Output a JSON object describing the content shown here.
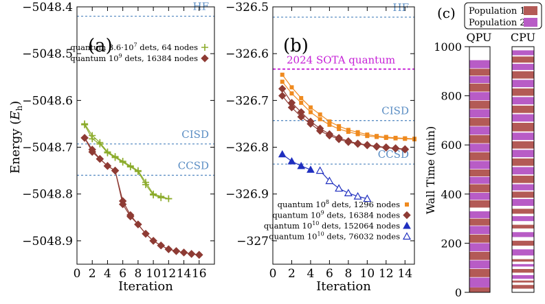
{
  "chart_data": [
    {
      "id": "a",
      "type": "line",
      "panel_label": "(a)",
      "xlabel": "Iteration",
      "ylabel": "Energy (E_h)",
      "ylabel_main": "Energy (",
      "ylabel_sym": "E",
      "ylabel_sub": "h",
      "ylabel_close": ")",
      "xlim": [
        0,
        18
      ],
      "ylim": [
        -5048.95,
        -5048.4
      ],
      "xticks": [
        0,
        2,
        4,
        6,
        8,
        10,
        12,
        14,
        16
      ],
      "yticks": [
        -5048.4,
        -5048.5,
        -5048.6,
        -5048.7,
        -5048.8,
        -5048.9
      ],
      "ytick_labels": [
        "−5048.4",
        "−5048.5",
        "−5048.6",
        "−5048.7",
        "−5048.8",
        "−5048.9"
      ],
      "hlines": [
        {
          "label": "HF",
          "y": -5048.42,
          "color": "#5b8ec4"
        },
        {
          "label": "CISD",
          "y": -5048.693,
          "color": "#5b8ec4"
        },
        {
          "label": "CCSD",
          "y": -5048.76,
          "color": "#5b8ec4"
        }
      ],
      "legend_position": "top-right",
      "series": [
        {
          "name": "quantum 3.6·10^7 dets, 64 nodes",
          "legend_pre": "quantum 3.6·10",
          "legend_sup": "7",
          "legend_post": " dets, 64 nodes",
          "color": "#8bab2a",
          "marker": "plus",
          "runs": [
            {
              "x": [
                1,
                2,
                3,
                4,
                5,
                6,
                7,
                8,
                9,
                10,
                11,
                12
              ],
              "y": [
                -5048.65,
                -5048.675,
                -5048.69,
                -5048.71,
                -5048.72,
                -5048.73,
                -5048.74,
                -5048.75,
                -5048.775,
                -5048.8,
                -5048.805,
                -5048.81
              ]
            },
            {
              "x": [
                1,
                2,
                3,
                4,
                5,
                6,
                7,
                8,
                9,
                10,
                11,
                12
              ],
              "y": [
                -5048.652,
                -5048.682,
                -5048.693,
                -5048.712,
                -5048.722,
                -5048.732,
                -5048.742,
                -5048.752,
                -5048.78,
                -5048.802,
                -5048.808,
                -5048.81
              ]
            }
          ]
        },
        {
          "name": "quantum 10^9 dets, 16384 nodes",
          "legend_pre": "quantum 10",
          "legend_sup": "9",
          "legend_post": " dets, 16384 nodes",
          "color": "#8e3b34",
          "marker": "diamond",
          "runs": [
            {
              "x": [
                1,
                2,
                3,
                4,
                5,
                6,
                7,
                8,
                9,
                10,
                11,
                12,
                13,
                14,
                15,
                16
              ],
              "y": [
                -5048.68,
                -5048.705,
                -5048.725,
                -5048.74,
                -5048.75,
                -5048.815,
                -5048.845,
                -5048.865,
                -5048.885,
                -5048.9,
                -5048.91,
                -5048.918,
                -5048.922,
                -5048.925,
                -5048.928,
                -5048.93
              ]
            },
            {
              "x": [
                1,
                2,
                3,
                4,
                5,
                6,
                7,
                8,
                9,
                10,
                11,
                12,
                13,
                14,
                15,
                16
              ],
              "y": [
                -5048.68,
                -5048.71,
                -5048.725,
                -5048.74,
                -5048.75,
                -5048.822,
                -5048.848,
                -5048.865,
                -5048.885,
                -5048.9,
                -5048.91,
                -5048.918,
                -5048.922,
                -5048.925,
                -5048.928,
                -5048.93
              ]
            }
          ]
        }
      ]
    },
    {
      "id": "b",
      "type": "line",
      "panel_label": "(b)",
      "xlabel": "Iteration",
      "xlim": [
        0,
        15
      ],
      "ylim": [
        -327.05,
        -326.5
      ],
      "xticks": [
        0,
        2,
        4,
        6,
        8,
        10,
        12,
        14
      ],
      "yticks": [
        -326.5,
        -326.6,
        -326.7,
        -326.8,
        -326.9,
        -327
      ],
      "ytick_labels": [
        "−326.5",
        "−326.6",
        "−326.7",
        "−326.8",
        "−326.9",
        "−327"
      ],
      "hlines": [
        {
          "label": "HF",
          "y": -326.522,
          "color": "#5b8ec4"
        },
        {
          "label": "2024 SOTA quantum",
          "y": -326.633,
          "color": "#c51fd6"
        },
        {
          "label": "CISD",
          "y": -326.743,
          "color": "#5b8ec4"
        },
        {
          "label": "CCSD",
          "y": -326.836,
          "color": "#5b8ec4"
        }
      ],
      "legend_position": "bottom-right",
      "series": [
        {
          "name": "quantum 10^8 dets, 1296 nodes",
          "legend_pre": "quantum 10",
          "legend_sup": "8",
          "legend_post": " dets, 1296 nodes",
          "color": "#ef8a1f",
          "marker": "square",
          "runs": [
            {
              "x": [
                1,
                2,
                3,
                4,
                5,
                6,
                7,
                8,
                9,
                10,
                11,
                12,
                13,
                14,
                15
              ],
              "y": [
                -326.645,
                -326.672,
                -326.695,
                -326.715,
                -326.73,
                -326.745,
                -326.755,
                -326.763,
                -326.768,
                -326.773,
                -326.776,
                -326.778,
                -326.78,
                -326.781,
                -326.782
              ]
            },
            {
              "x": [
                1,
                2,
                3,
                4,
                5,
                6,
                7,
                8,
                9,
                10,
                11,
                12,
                13,
                14,
                15
              ],
              "y": [
                -326.66,
                -326.685,
                -326.705,
                -326.725,
                -326.74,
                -326.752,
                -326.761,
                -326.767,
                -326.772,
                -326.776,
                -326.778,
                -326.78,
                -326.781,
                -326.782,
                -326.783
              ]
            }
          ]
        },
        {
          "name": "quantum 10^9 dets, 16384 nodes",
          "legend_pre": "quantum 10",
          "legend_sup": "9",
          "legend_post": " dets, 16384 nodes",
          "color": "#8e3b34",
          "marker": "diamond",
          "runs": [
            {
              "x": [
                1,
                2,
                3,
                4,
                5,
                6,
                7,
                8,
                9,
                10,
                11,
                12,
                13,
                14
              ],
              "y": [
                -326.675,
                -326.705,
                -326.725,
                -326.745,
                -326.76,
                -326.772,
                -326.78,
                -326.787,
                -326.792,
                -326.795,
                -326.798,
                -326.8,
                -326.802,
                -326.804
              ]
            },
            {
              "x": [
                1,
                2,
                3,
                4,
                5,
                6,
                7,
                8,
                9,
                10,
                11,
                12,
                13,
                14
              ],
              "y": [
                -326.69,
                -326.715,
                -326.735,
                -326.75,
                -326.765,
                -326.775,
                -326.783,
                -326.789,
                -326.793,
                -326.796,
                -326.799,
                -326.801,
                -326.803,
                -326.805
              ]
            }
          ]
        },
        {
          "name": "quantum 10^10 dets, 152064 nodes",
          "legend_pre": "quantum 10",
          "legend_sup": "10",
          "legend_post": " dets, 152064 nodes",
          "color": "#1f2fbf",
          "marker": "triangle",
          "runs": [
            {
              "x": [
                1,
                2,
                3,
                4
              ],
              "y": [
                -326.815,
                -326.83,
                -326.84,
                -326.848
              ]
            }
          ]
        },
        {
          "name": "quantum 10^10 dets, 76032 nodes",
          "legend_pre": "quantum 10",
          "legend_sup": "10",
          "legend_post": " dets, 76032 nodes",
          "color": "#1f2fbf",
          "marker": "triangle-open",
          "runs": [
            {
              "x": [
                5,
                6,
                7,
                8,
                9,
                10
              ],
              "y": [
                -326.85,
                -326.872,
                -326.888,
                -326.898,
                -326.905,
                -326.91
              ]
            }
          ]
        }
      ]
    },
    {
      "id": "c",
      "type": "bar",
      "panel_label": "(c)",
      "ylabel": "Wall Time (min)",
      "categories": [
        "QPU",
        "CPU"
      ],
      "ylim": [
        0,
        1000
      ],
      "yticks": [
        0,
        200,
        400,
        600,
        800,
        1000
      ],
      "ytick_labels": [
        "0",
        "200",
        "400",
        "600",
        "800",
        "1000"
      ],
      "legend": [
        {
          "label": "Population 1",
          "color": "#b35a56"
        },
        {
          "label": "Population 2",
          "color": "#b85cc6"
        }
      ],
      "timelines": [
        {
          "name": "QPU",
          "segments": [
            {
              "start": 0,
              "end": 20,
              "pop": 1
            },
            {
              "start": 20,
              "end": 60,
              "pop": 2
            },
            {
              "start": 62,
              "end": 95,
              "pop": 1
            },
            {
              "start": 97,
              "end": 130,
              "pop": 2
            },
            {
              "start": 132,
              "end": 165,
              "pop": 1
            },
            {
              "start": 167,
              "end": 200,
              "pop": 2
            },
            {
              "start": 202,
              "end": 235,
              "pop": 1
            },
            {
              "start": 237,
              "end": 270,
              "pop": 2
            },
            {
              "start": 272,
              "end": 300,
              "pop": 1
            },
            {
              "start": 302,
              "end": 330,
              "pop": 2
            },
            {
              "start": 345,
              "end": 375,
              "pop": 1
            },
            {
              "start": 377,
              "end": 405,
              "pop": 2
            },
            {
              "start": 407,
              "end": 440,
              "pop": 1
            },
            {
              "start": 442,
              "end": 470,
              "pop": 2
            },
            {
              "start": 472,
              "end": 500,
              "pop": 1
            },
            {
              "start": 502,
              "end": 535,
              "pop": 2
            },
            {
              "start": 537,
              "end": 570,
              "pop": 1
            },
            {
              "start": 572,
              "end": 605,
              "pop": 2
            },
            {
              "start": 607,
              "end": 640,
              "pop": 1
            },
            {
              "start": 642,
              "end": 675,
              "pop": 2
            },
            {
              "start": 677,
              "end": 710,
              "pop": 1
            },
            {
              "start": 712,
              "end": 745,
              "pop": 2
            },
            {
              "start": 747,
              "end": 780,
              "pop": 1
            },
            {
              "start": 782,
              "end": 815,
              "pop": 2
            },
            {
              "start": 817,
              "end": 850,
              "pop": 1
            },
            {
              "start": 852,
              "end": 880,
              "pop": 2
            },
            {
              "start": 882,
              "end": 910,
              "pop": 1
            },
            {
              "start": 912,
              "end": 945,
              "pop": 2
            }
          ]
        },
        {
          "name": "CPU",
          "segments": [
            {
              "start": 15,
              "end": 30,
              "pop": 1
            },
            {
              "start": 40,
              "end": 48,
              "pop": 1
            },
            {
              "start": 55,
              "end": 70,
              "pop": 2
            },
            {
              "start": 80,
              "end": 95,
              "pop": 1
            },
            {
              "start": 105,
              "end": 115,
              "pop": 2
            },
            {
              "start": 125,
              "end": 135,
              "pop": 1
            },
            {
              "start": 150,
              "end": 175,
              "pop": 2
            },
            {
              "start": 190,
              "end": 210,
              "pop": 1
            },
            {
              "start": 225,
              "end": 245,
              "pop": 2
            },
            {
              "start": 260,
              "end": 275,
              "pop": 1
            },
            {
              "start": 290,
              "end": 310,
              "pop": 2
            },
            {
              "start": 320,
              "end": 340,
              "pop": 1
            },
            {
              "start": 352,
              "end": 380,
              "pop": 2
            },
            {
              "start": 385,
              "end": 410,
              "pop": 1
            },
            {
              "start": 415,
              "end": 440,
              "pop": 2
            },
            {
              "start": 445,
              "end": 475,
              "pop": 1
            },
            {
              "start": 480,
              "end": 510,
              "pop": 2
            },
            {
              "start": 515,
              "end": 545,
              "pop": 1
            },
            {
              "start": 550,
              "end": 580,
              "pop": 2
            },
            {
              "start": 585,
              "end": 615,
              "pop": 1
            },
            {
              "start": 620,
              "end": 650,
              "pop": 2
            },
            {
              "start": 655,
              "end": 690,
              "pop": 1
            },
            {
              "start": 695,
              "end": 725,
              "pop": 2
            },
            {
              "start": 730,
              "end": 760,
              "pop": 1
            },
            {
              "start": 765,
              "end": 795,
              "pop": 2
            },
            {
              "start": 800,
              "end": 830,
              "pop": 1
            },
            {
              "start": 835,
              "end": 865,
              "pop": 2
            },
            {
              "start": 870,
              "end": 900,
              "pop": 1
            },
            {
              "start": 905,
              "end": 930,
              "pop": 2
            },
            {
              "start": 935,
              "end": 960,
              "pop": 1
            },
            {
              "start": 965,
              "end": 985,
              "pop": 2
            }
          ]
        }
      ]
    }
  ]
}
